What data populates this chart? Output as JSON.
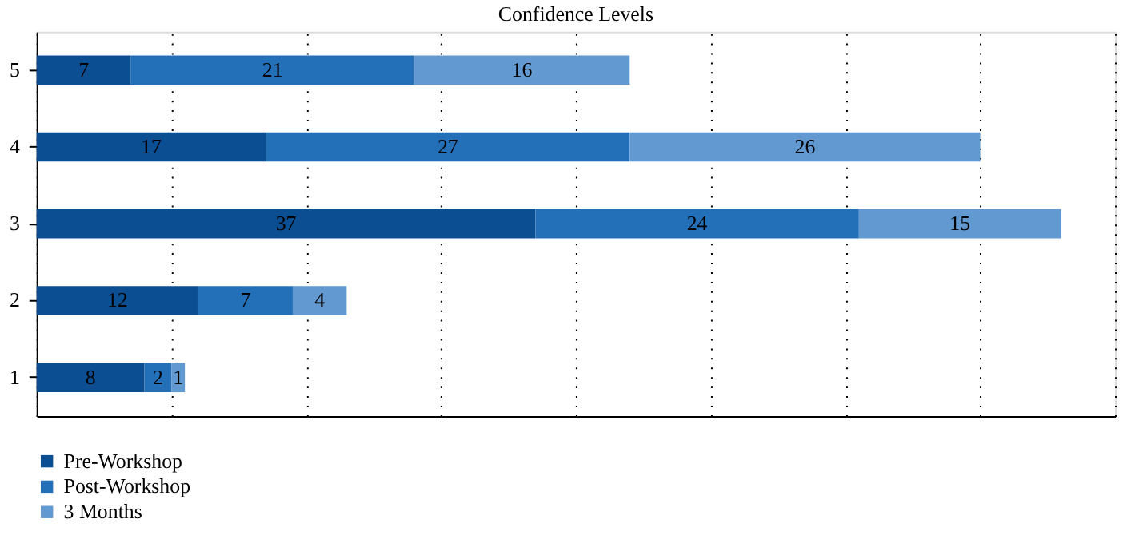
{
  "chart_data": {
    "type": "bar",
    "orientation": "horizontal",
    "stacked": true,
    "title": "Confidence Levels",
    "categories": [
      "5",
      "4",
      "3",
      "2",
      "1"
    ],
    "series": [
      {
        "name": "Pre-Workshop",
        "color": "#0b4e92",
        "values": [
          7,
          17,
          37,
          12,
          8
        ]
      },
      {
        "name": "Post-Workshop",
        "color": "#2470b8",
        "values": [
          21,
          27,
          24,
          7,
          2
        ]
      },
      {
        "name": "3 Months",
        "color": "#6199d0",
        "values": [
          16,
          26,
          15,
          4,
          1
        ]
      }
    ],
    "xlim": [
      0,
      80
    ],
    "xticks": [
      {
        "value": 0,
        "label": null
      },
      {
        "value": 10,
        "label": null
      },
      {
        "value": 20,
        "label": null
      },
      {
        "value": 30,
        "label": null
      },
      {
        "value": 40,
        "label": null
      },
      {
        "value": 50,
        "label": null
      },
      {
        "value": 60,
        "label": null
      },
      {
        "value": 70,
        "label": null
      },
      {
        "value": 80,
        "label": null
      }
    ],
    "tick_labels": "y",
    "grid": "x",
    "legend": "bottom left",
    "data_labels": true
  }
}
